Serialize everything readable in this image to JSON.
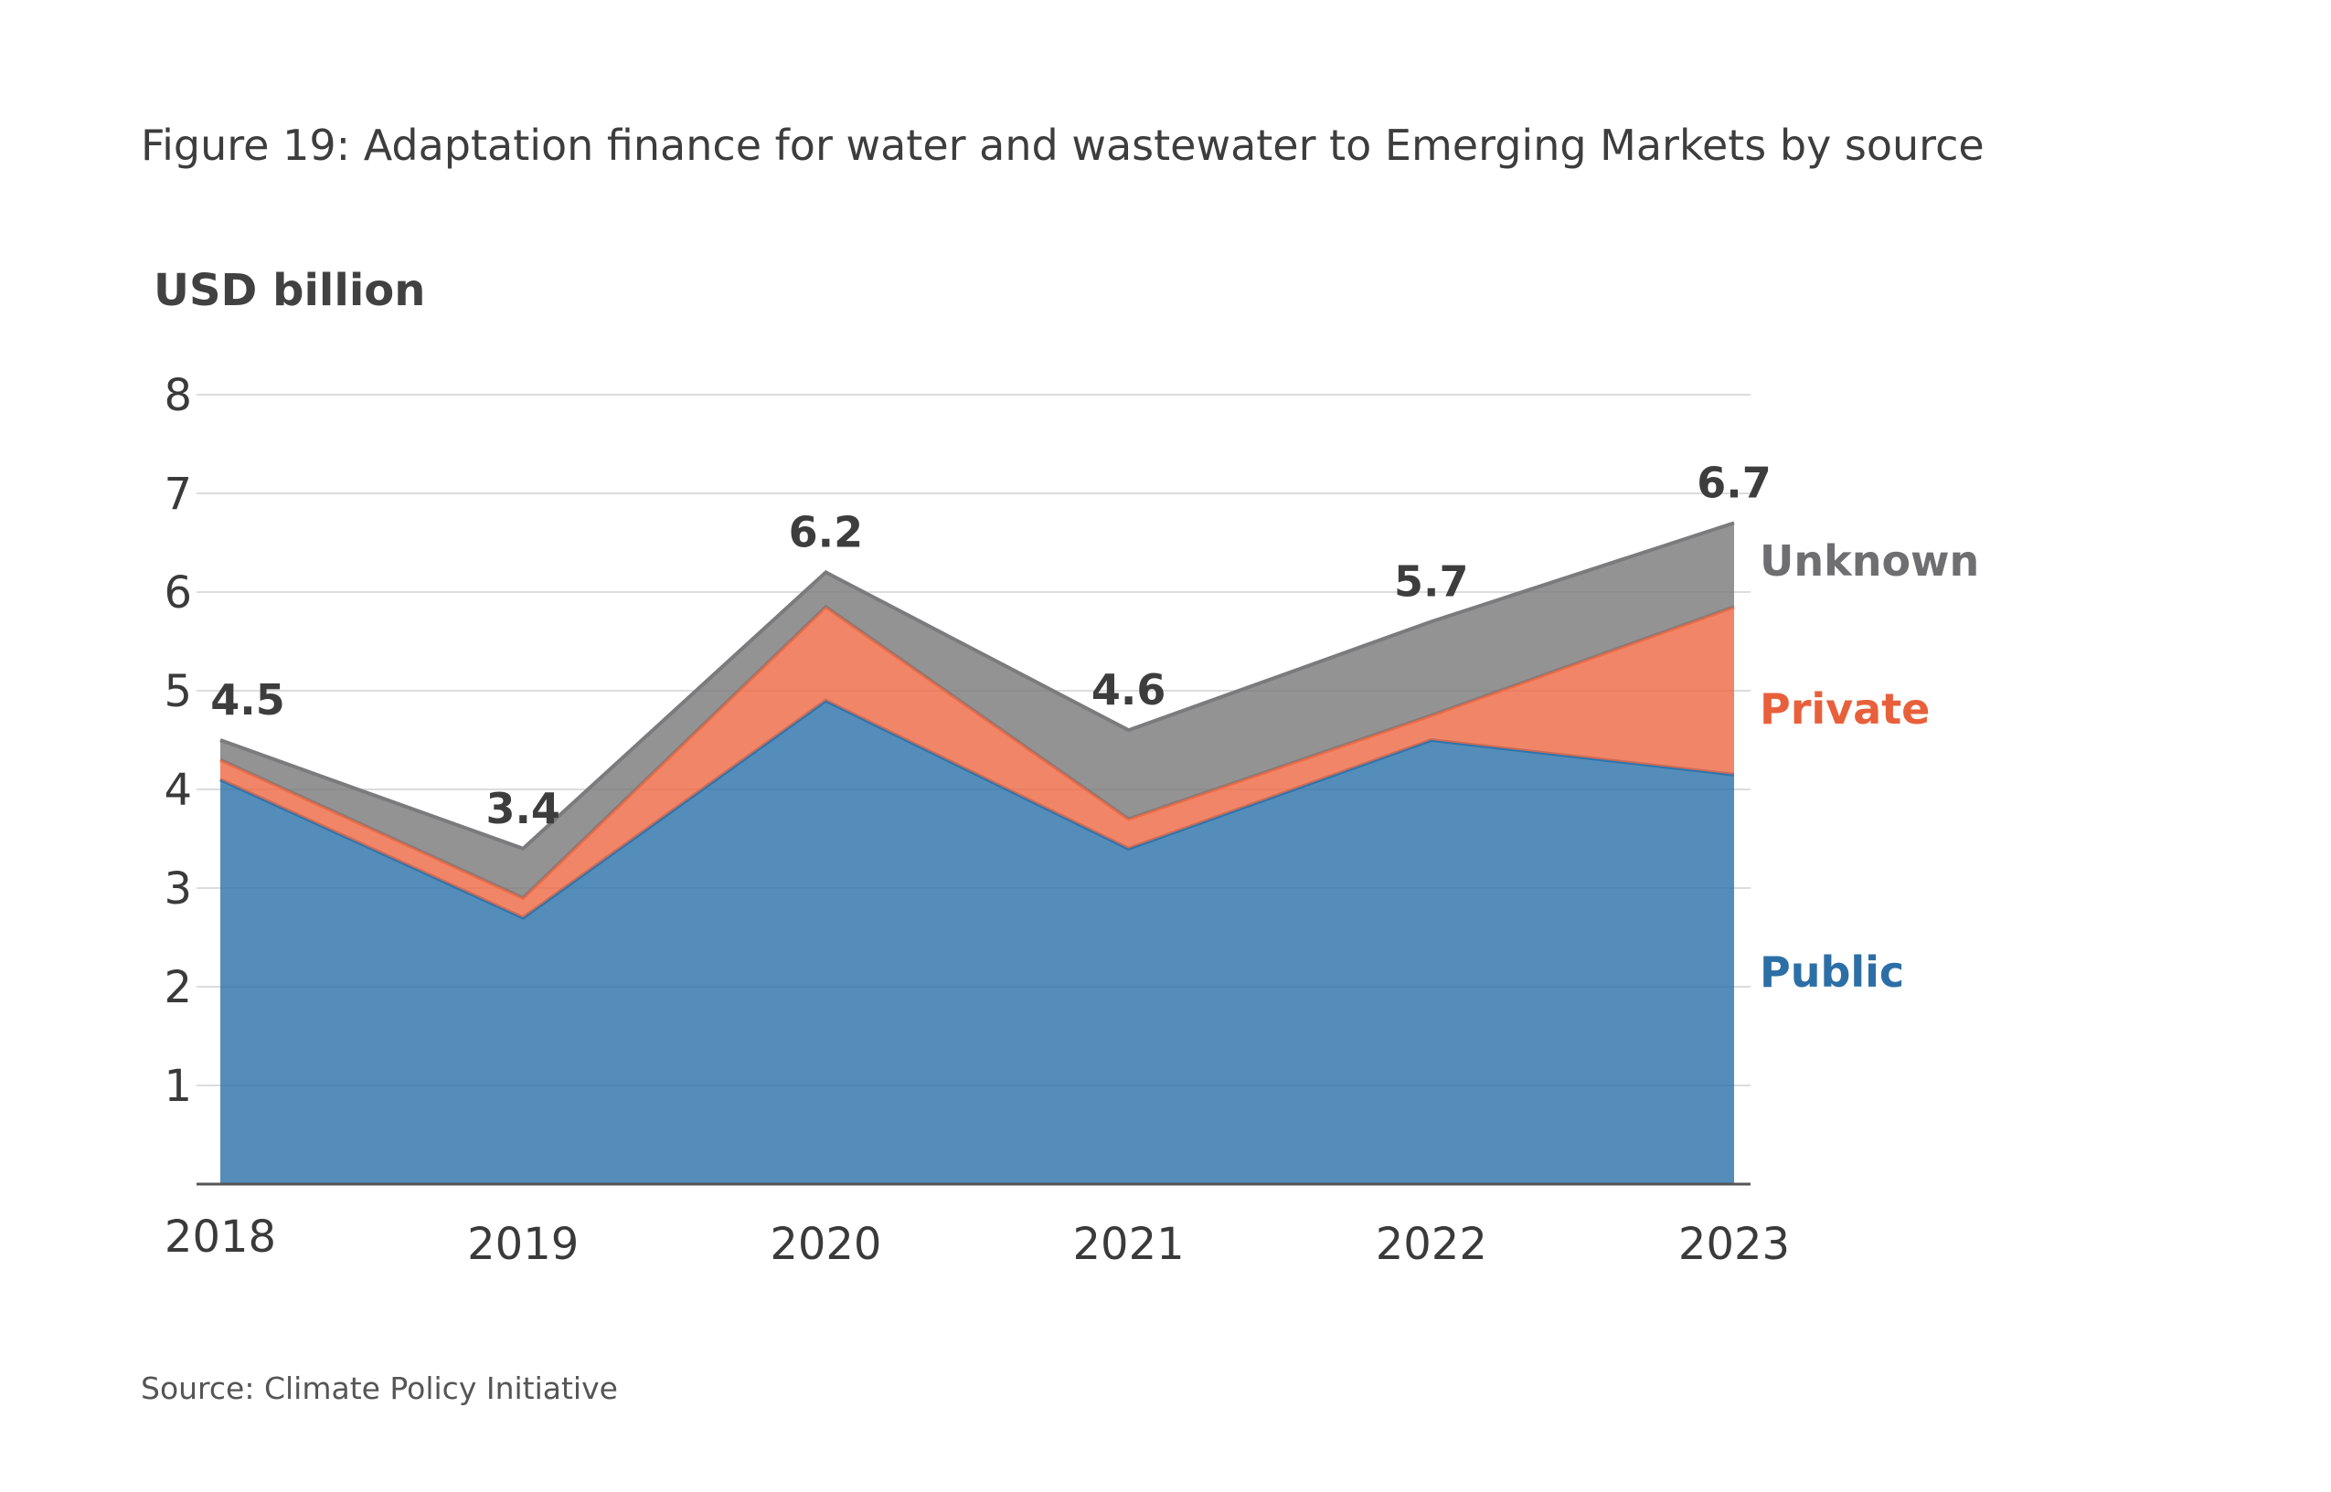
{
  "figure": {
    "title": "Figure 19: Adaptation finance for water and wastewater to Emerging Markets by source",
    "source": "Source: Climate Policy Initiative"
  },
  "chart_data": {
    "type": "area",
    "stacked": true,
    "title": "Figure 19: Adaptation finance for water and wastewater to Emerging Markets by source",
    "ylabel": "USD billion",
    "xlabel": "",
    "categories": [
      "2018",
      "2019",
      "2020",
      "2021",
      "2022",
      "2023"
    ],
    "ylim": [
      0,
      8
    ],
    "yticks": [
      1,
      2,
      3,
      4,
      5,
      6,
      7,
      8
    ],
    "grid": true,
    "series": [
      {
        "name": "Public",
        "values": [
          4.1,
          2.7,
          4.9,
          3.4,
          4.5,
          4.15
        ],
        "color": "#2f74ab"
      },
      {
        "name": "Private",
        "values": [
          0.2,
          0.2,
          0.95,
          0.3,
          0.25,
          1.7
        ],
        "color": "#ee6a45"
      },
      {
        "name": "Unknown",
        "values": [
          0.2,
          0.5,
          0.35,
          0.9,
          0.95,
          0.85
        ],
        "color": "#7b7b7d"
      }
    ],
    "totals": [
      4.5,
      3.4,
      6.2,
      4.6,
      5.7,
      6.7
    ],
    "total_labels": [
      "4.5",
      "3.4",
      "6.2",
      "4.6",
      "5.7",
      "6.7"
    ],
    "legend": "right"
  }
}
